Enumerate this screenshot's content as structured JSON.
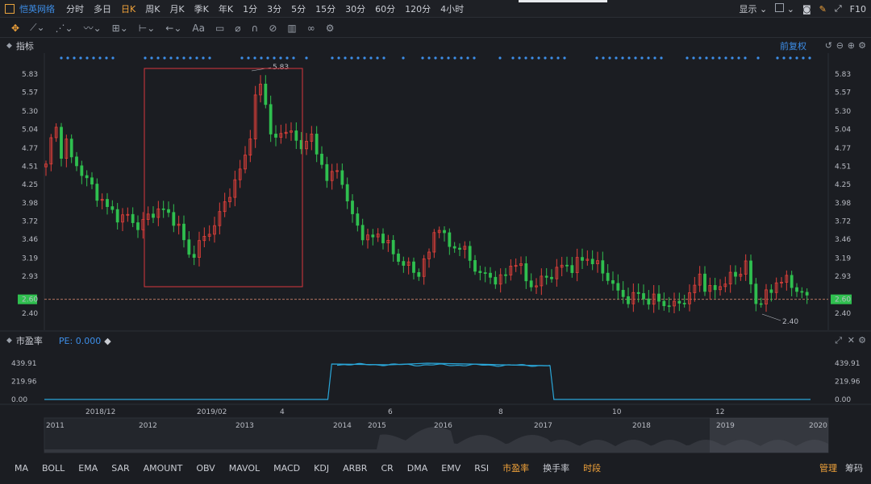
{
  "topbar": {
    "stock_name": "恺英网络",
    "periods": [
      "分时",
      "多日",
      "日K",
      "周K",
      "月K",
      "季K",
      "年K",
      "1分",
      "3分",
      "5分",
      "15分",
      "30分",
      "60分",
      "120分",
      "4小时"
    ],
    "active_period": 2,
    "display_label": "显示",
    "f10_label": "F10"
  },
  "indicator_pane": {
    "title": "指标",
    "adjust_label": "前复权",
    "y_ticks": [
      "5.83",
      "5.57",
      "5.30",
      "5.04",
      "4.77",
      "4.51",
      "4.25",
      "3.98",
      "3.72",
      "3.46",
      "3.19",
      "2.93",
      "2.60",
      "2.40"
    ],
    "current_price": "2.60",
    "high_label": "5.83",
    "low_label": "2.40"
  },
  "pe_pane": {
    "title": "市盈率",
    "pe_value": "PE: 0.000",
    "y_ticks": [
      "439.91",
      "219.96",
      "0.00"
    ]
  },
  "time_axis": [
    "2018/12",
    "2019/02",
    "4",
    "6",
    "8",
    "10",
    "12"
  ],
  "overview_axis": [
    "2011",
    "2012",
    "2013",
    "2014",
    "2015",
    "2016",
    "2017",
    "2018",
    "2019",
    "2020"
  ],
  "tabs": [
    "MA",
    "BOLL",
    "EMA",
    "SAR",
    "AMOUNT",
    "OBV",
    "MAVOL",
    "MACD",
    "KDJ",
    "ARBR",
    "CR",
    "DMA",
    "EMV",
    "RSI",
    "市盈率",
    "换手率",
    "时段"
  ],
  "active_tabs": [
    14,
    16
  ],
  "right_tabs": {
    "manage": "管理",
    "chips": "筹码"
  },
  "colors": {
    "up": "#e0403a",
    "down": "#2fbf4f",
    "accent": "#f2a33a",
    "blue": "#3d8ee8",
    "pe_line": "#2aa6d8"
  },
  "chart_data": {
    "type": "candlestick",
    "y_range": [
      2.4,
      5.83
    ],
    "close_path": [
      4.5,
      4.9,
      5.05,
      4.7,
      4.85,
      4.6,
      4.55,
      4.4,
      4.3,
      4.2,
      4.1,
      4.0,
      3.9,
      3.85,
      3.8,
      3.75,
      3.8,
      3.7,
      3.65,
      3.7,
      3.8,
      3.85,
      3.9,
      3.85,
      3.8,
      3.75,
      3.6,
      3.4,
      3.2,
      3.3,
      3.4,
      3.5,
      3.6,
      3.7,
      3.85,
      4.0,
      4.2,
      4.3,
      4.5,
      4.7,
      5.1,
      5.6,
      5.7,
      5.3,
      4.9,
      4.85,
      5.0,
      5.1,
      4.95,
      4.8,
      4.7,
      5.1,
      4.8,
      4.6,
      4.5,
      4.3,
      4.4,
      4.45,
      4.2,
      3.9,
      3.7,
      3.6,
      3.5,
      3.45,
      3.5,
      3.55,
      3.45,
      3.3,
      3.2,
      3.15,
      3.1,
      3.05,
      2.9,
      3.1,
      3.2,
      3.3,
      3.8,
      3.55,
      3.4,
      3.3,
      3.4,
      3.35,
      3.2,
      3.1,
      3.0,
      2.95,
      2.9,
      2.92,
      2.88,
      2.9,
      3.0,
      3.2,
      3.1,
      2.9,
      2.82,
      2.8,
      2.85,
      2.9,
      2.95,
      3.0,
      3.05,
      3.1,
      3.05,
      3.1,
      3.15,
      3.2,
      3.18,
      3.1,
      3.0,
      2.95,
      2.85,
      2.7,
      2.65,
      2.62,
      2.6,
      2.7,
      2.62,
      2.6,
      2.58,
      2.6,
      2.55,
      2.52,
      2.5,
      2.55,
      2.6,
      2.62,
      2.75,
      3.0,
      2.8,
      2.7,
      2.75,
      2.8,
      2.85,
      2.9,
      2.95,
      3.0,
      3.15,
      2.8,
      2.55,
      2.6,
      2.65,
      2.7,
      2.85,
      2.9,
      2.85,
      2.8,
      2.75,
      2.7,
      2.6
    ],
    "pe_y_range": [
      0,
      439.91
    ],
    "pe_path": [
      [
        0,
        0
      ],
      [
        0.37,
        0
      ],
      [
        0.375,
        430
      ],
      [
        0.45,
        420
      ],
      [
        0.5,
        440
      ],
      [
        0.58,
        425
      ],
      [
        0.62,
        415
      ],
      [
        0.66,
        410
      ],
      [
        0.665,
        0
      ],
      [
        1,
        0
      ]
    ]
  }
}
